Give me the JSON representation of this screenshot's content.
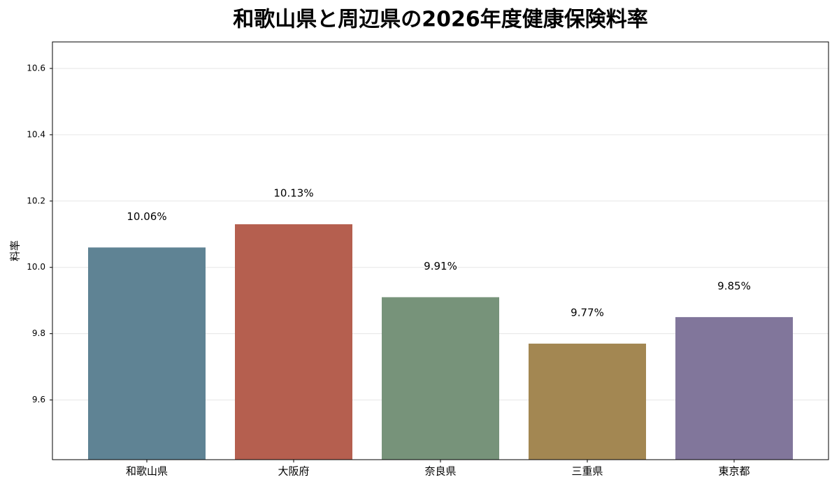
{
  "chart_data": {
    "type": "bar",
    "title": "和歌山県と周辺県の2026年度健康保険料率",
    "y_label": "料率",
    "categories": [
      "和歌山県",
      "大阪府",
      "奈良県",
      "三重県",
      "東京都"
    ],
    "values": [
      10.06,
      10.13,
      9.91,
      9.77,
      9.85
    ],
    "value_labels": [
      "10.06%",
      "10.13%",
      "9.91%",
      "9.77%",
      "9.85%"
    ],
    "colors": [
      "#5f8394",
      "#b55f4f",
      "#77937a",
      "#a38752",
      "#81769b"
    ],
    "ylim": [
      9.42,
      10.68
    ],
    "yticks": [
      9.6,
      9.8,
      {
        "value": 10,
        "label": "10.0"
      },
      10.2,
      10.4,
      10.6
    ],
    "grid": true
  }
}
